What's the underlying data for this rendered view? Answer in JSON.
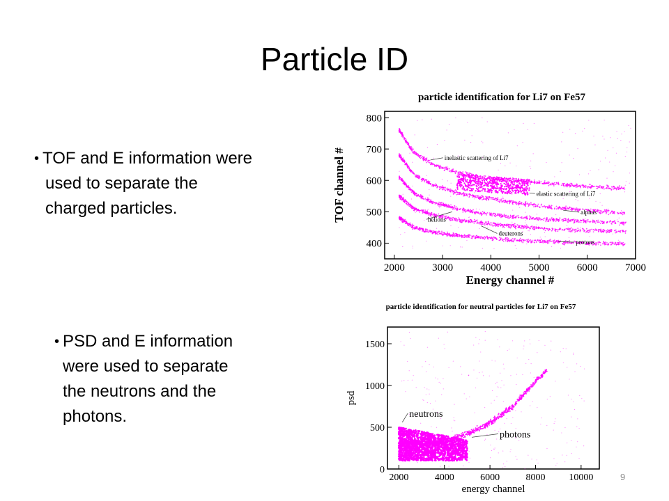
{
  "slide": {
    "title": "Particle ID",
    "bullets": [
      {
        "lines": [
          "TOF and E information were",
          "used to  separate the",
          "charged particles."
        ]
      },
      {
        "lines": [
          "PSD and E information",
          "were used to separate",
          "the neutrons and the",
          "photons."
        ]
      }
    ],
    "page_number": "9"
  },
  "chart_data": [
    {
      "type": "scatter",
      "title": "particle identification for Li7 on Fe57",
      "xlabel": "Energy channel #",
      "ylabel": "TOF channel #",
      "xlim": [
        1800,
        7000
      ],
      "ylim": [
        350,
        820
      ],
      "x_ticks": [
        2000,
        3000,
        4000,
        5000,
        6000,
        7000
      ],
      "y_ticks": [
        400,
        500,
        600,
        700,
        800
      ],
      "color": "#ff00ff",
      "bands": [
        {
          "x": [
            2100,
            2400,
            2800,
            3300,
            3800,
            4400,
            5200,
            6000,
            6800
          ],
          "y": [
            760,
            690,
            650,
            625,
            610,
            600,
            590,
            580,
            575
          ]
        },
        {
          "x": [
            2100,
            2400,
            2800,
            3300,
            3800,
            4400,
            5200,
            6000,
            6800
          ],
          "y": [
            680,
            620,
            585,
            560,
            545,
            532,
            515,
            505,
            495
          ]
        },
        {
          "x": [
            2100,
            2400,
            2800,
            3300,
            3800,
            4400,
            5200,
            6000,
            6800
          ],
          "y": [
            610,
            560,
            530,
            510,
            495,
            485,
            475,
            470,
            465
          ]
        },
        {
          "x": [
            2100,
            2400,
            2800,
            3300,
            3800,
            4400,
            5200,
            6000,
            6800
          ],
          "y": [
            550,
            510,
            490,
            475,
            465,
            455,
            445,
            440,
            438
          ]
        },
        {
          "x": [
            2100,
            2400,
            2800,
            3300,
            3800,
            4400,
            5200,
            6000,
            6800
          ],
          "y": [
            480,
            450,
            435,
            425,
            418,
            410,
            405,
            400,
            398
          ]
        }
      ],
      "cluster": {
        "x": [
          3300,
          4800
        ],
        "y": [
          570,
          620
        ]
      },
      "annotations": [
        {
          "text": "inelastic scattering of Li7",
          "x": 2750,
          "y": 665
        },
        {
          "text": "elastic scattering of Li7",
          "x": 4800,
          "y": 560
        },
        {
          "text": "alphas",
          "x": 5500,
          "y": 505
        },
        {
          "text": "helions",
          "x": 3200,
          "y": 500
        },
        {
          "text": "deuterons",
          "x": 3800,
          "y": 455
        },
        {
          "text": "protons",
          "x": 5400,
          "y": 405
        }
      ]
    },
    {
      "type": "scatter",
      "title": "particle identification for neutral particles for Li7 on Fe57",
      "xlabel": "energy channel",
      "ylabel": "psd",
      "xlim": [
        1500,
        10800
      ],
      "ylim": [
        0,
        1700
      ],
      "x_ticks": [
        2000,
        4000,
        6000,
        8000,
        10000
      ],
      "y_ticks": [
        0,
        500,
        1000,
        1500
      ],
      "color": "#ff00ff",
      "photon_band": {
        "x": [
          2000,
          3000,
          4000,
          5000,
          6000,
          7000,
          7500,
          8000,
          8500
        ],
        "y": [
          300,
          300,
          330,
          420,
          550,
          750,
          900,
          1050,
          1180
        ]
      },
      "neutron_region": {
        "x": [
          2000,
          5000
        ],
        "y": [
          100,
          500
        ]
      },
      "annotations": [
        {
          "text": "neutrons",
          "x": 2150,
          "y": 560
        },
        {
          "text": "photons",
          "x": 5200,
          "y": 380
        }
      ]
    }
  ]
}
